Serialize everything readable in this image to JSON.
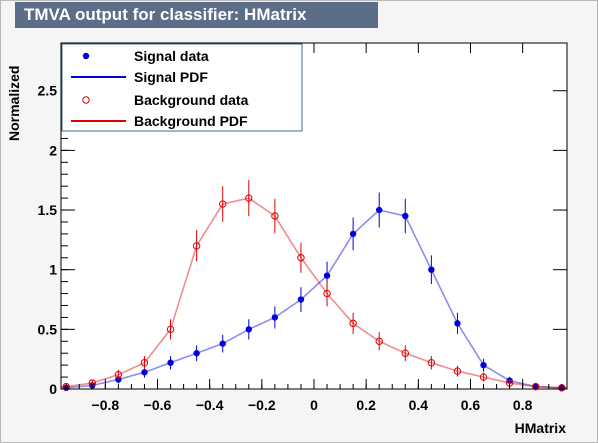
{
  "title": "TMVA output for classifier: HMatrix",
  "chart_data": {
    "type": "scatter",
    "xlabel": "HMatrix",
    "ylabel": "Normalized",
    "xlim": [
      -0.97,
      0.97
    ],
    "ylim": [
      0,
      2.9
    ],
    "x_ticks": [
      -0.8,
      -0.6,
      -0.4,
      -0.2,
      0,
      0.2,
      0.4,
      0.6,
      0.8
    ],
    "x_tick_labels": [
      "−0.8",
      "−0.6",
      "−0.4",
      "−0.2",
      "0",
      "0.2",
      "0.4",
      "0.6",
      "0.8"
    ],
    "y_ticks": [
      0,
      0.5,
      1,
      1.5,
      2,
      2.5
    ],
    "y_tick_labels": [
      "0",
      "0.5",
      "1",
      "1.5",
      "2",
      "2.5"
    ],
    "grid": false,
    "legend_position": "top-left",
    "series": [
      {
        "name": "Signal data",
        "style": "points",
        "color": "#0000dd",
        "x": [
          -0.95,
          -0.85,
          -0.75,
          -0.65,
          -0.55,
          -0.45,
          -0.35,
          -0.25,
          -0.15,
          -0.05,
          0.05,
          0.15,
          0.25,
          0.35,
          0.45,
          0.55,
          0.65,
          0.75,
          0.85,
          0.95
        ],
        "y": [
          0.01,
          0.03,
          0.08,
          0.14,
          0.22,
          0.3,
          0.38,
          0.5,
          0.6,
          0.75,
          0.95,
          1.3,
          1.5,
          1.45,
          1.0,
          0.55,
          0.2,
          0.07,
          0.02,
          0.01
        ]
      },
      {
        "name": "Signal PDF",
        "style": "line",
        "color": "#0000dd",
        "x": [
          -0.95,
          -0.85,
          -0.75,
          -0.65,
          -0.55,
          -0.45,
          -0.35,
          -0.25,
          -0.15,
          -0.05,
          0.05,
          0.15,
          0.25,
          0.35,
          0.45,
          0.55,
          0.65,
          0.75,
          0.85,
          0.95
        ],
        "y": [
          0.01,
          0.03,
          0.08,
          0.14,
          0.22,
          0.3,
          0.38,
          0.5,
          0.6,
          0.75,
          0.95,
          1.3,
          1.5,
          1.45,
          1.0,
          0.55,
          0.2,
          0.07,
          0.02,
          0.01
        ]
      },
      {
        "name": "Background data",
        "style": "open-points",
        "color": "#dd0000",
        "x": [
          -0.95,
          -0.85,
          -0.75,
          -0.65,
          -0.55,
          -0.45,
          -0.35,
          -0.25,
          -0.15,
          -0.05,
          0.05,
          0.15,
          0.25,
          0.35,
          0.45,
          0.55,
          0.65,
          0.75,
          0.85,
          0.95
        ],
        "y": [
          0.02,
          0.05,
          0.12,
          0.22,
          0.5,
          1.2,
          1.55,
          1.6,
          1.45,
          1.1,
          0.8,
          0.55,
          0.4,
          0.3,
          0.22,
          0.15,
          0.1,
          0.05,
          0.02,
          0.01
        ]
      },
      {
        "name": "Background PDF",
        "style": "line",
        "color": "#dd0000",
        "x": [
          -0.95,
          -0.85,
          -0.75,
          -0.65,
          -0.55,
          -0.45,
          -0.35,
          -0.25,
          -0.15,
          -0.05,
          0.05,
          0.15,
          0.25,
          0.35,
          0.45,
          0.55,
          0.65,
          0.75,
          0.85,
          0.95
        ],
        "y": [
          0.02,
          0.05,
          0.12,
          0.22,
          0.5,
          1.2,
          1.55,
          1.6,
          1.45,
          1.1,
          0.8,
          0.55,
          0.4,
          0.3,
          0.22,
          0.15,
          0.1,
          0.05,
          0.02,
          0.01
        ]
      }
    ]
  }
}
